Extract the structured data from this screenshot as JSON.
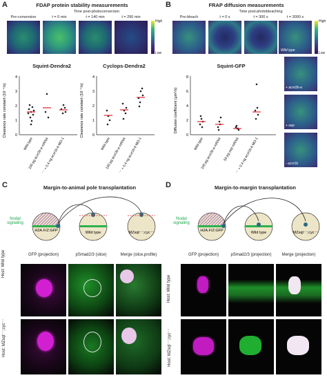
{
  "panelA": {
    "letter": "A",
    "title": "FDAP protein stability measurements",
    "subtitle": "Time post-photoconversion",
    "thumbs": [
      "Pre-conversion",
      "t = 0 min",
      "t = 140 min",
      "t = 290 min"
    ],
    "colorbar_high": "High",
    "colorbar_low": "Low",
    "plot1": {
      "title": "Squint-Dendra2",
      "ylabel": "Clearance rate constant (10⁻⁴/s)",
      "yticks": [
        "0",
        "1",
        "2",
        "3",
        "4"
      ],
      "groups": [
        "Wild type",
        "100 pg acvr2b-a mRNA",
        "acvr1b/acvr1b-a⁻⁻ + 0.4 ng acvr1b-b MO-1"
      ]
    },
    "plot2": {
      "title": "Cyclops-Dendra2",
      "ylabel": "Clearance rate constant (10⁻⁴/s)",
      "yticks": [
        "0",
        "1",
        "2",
        "3",
        "4"
      ],
      "groups": [
        "Wild type",
        "100 pg acvr2b-a mRNA",
        "acvr1b/acvr1b-a⁻⁻ + 0.4 ng acvr1b-b MO-1"
      ]
    }
  },
  "panelB": {
    "letter": "B",
    "title": "FRAP diffusion measurements",
    "subtitle": "Time post-photobleaching",
    "thumbs": [
      "Pre-bleach",
      "t = 0 s",
      "t = 300 s",
      "t = 3000 s"
    ],
    "colorbar_high": "High",
    "colorbar_low": "Low",
    "side_labels": [
      "Wild type",
      "+ acvr2b-a",
      "+ oep",
      "- acvr1b"
    ],
    "plot": {
      "title": "Squint-GFP",
      "ylabel": "Diffusion coefficient (µm²/s)",
      "yticks": [
        "0",
        "2",
        "4",
        "6",
        "8"
      ],
      "groups": [
        "Wild type",
        "100 pg acvr2b-a mRNA",
        "50 pg oep mRNA",
        "acvr1b/acvr1b-a⁻⁻ + 0.4 ng acvr1b-b MO-1"
      ]
    }
  },
  "panelC": {
    "letter": "C",
    "title": "Margin-to-animal pole transplantation",
    "nodal": "Nodal signaling",
    "donor": "H2A.F/Z:GFP",
    "host1": "Wild type",
    "host2": "MZsqt⁻⁻;cyc⁻⁻",
    "cols": [
      "GFP (projection)",
      "pSmad2/3 (slice)",
      "Merge (slice,profile)"
    ],
    "rows": [
      "Host: Wild type",
      "Host: MZsqt⁻⁻;cyc⁻⁻"
    ]
  },
  "panelD": {
    "letter": "D",
    "title": "Margin-to-margin transplantation",
    "nodal": "Nodal signaling",
    "donor": "H2A.F/Z:GFP",
    "host1": "Wild type",
    "host2": "MZsqt⁻⁻;cyc⁻⁻",
    "cols": [
      "GFP (projection)",
      "pSmad2/3 (projection)",
      "Merge (projection)"
    ],
    "rows": [
      "Host: Wild type",
      "Host: MZsqt⁻⁻;cyc⁻⁻"
    ]
  },
  "colors": {
    "magenta": "#d21fd2",
    "green": "#27c93a",
    "red": "#e0202a",
    "nodal": "#1aa54a"
  }
}
